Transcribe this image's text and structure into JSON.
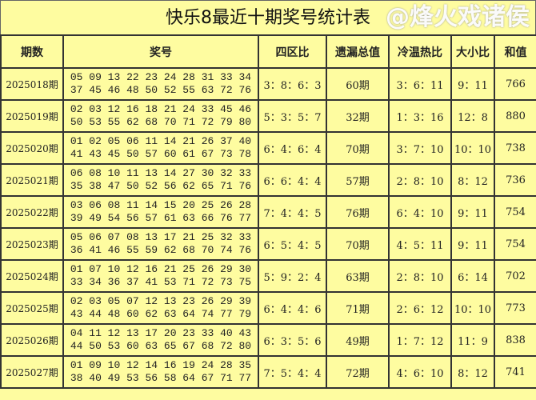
{
  "title": "快乐8最近十期奖号统计表",
  "headers": [
    "期数",
    "奖号",
    "四区比",
    "遗漏总值",
    "冷温热比",
    "大小比",
    "和值"
  ],
  "rows": [
    {
      "period": "2025018期",
      "line1": "05 09 13 22 23 24 28 31 33 34",
      "line2": "37 45 46 48 50 52 55 63 72 76",
      "zone": "3：8：6：3",
      "miss": "60期",
      "chw": "3：6：11",
      "bs": "9：11",
      "sum": "766"
    },
    {
      "period": "2025019期",
      "line1": "02 03 12 16 18 21 24 33 45 46",
      "line2": "50 53 55 62 68 70 71 72 79 80",
      "zone": "5：3：5：7",
      "miss": "32期",
      "chw": "1：3：16",
      "bs": "12：8",
      "sum": "880"
    },
    {
      "period": "2025020期",
      "line1": "01 02 05 06 11 14 21 26 37 40",
      "line2": "41 43 45 50 57 60 61 67 73 78",
      "zone": "6：4：6：4",
      "miss": "70期",
      "chw": "3：7：10",
      "bs": "10：10",
      "sum": "738"
    },
    {
      "period": "2025021期",
      "line1": "06 08 10 11 13 14 27 30 32 33",
      "line2": "35 38 47 50 52 56 62 65 71 76",
      "zone": "6：6：4：4",
      "miss": "57期",
      "chw": "2：8：10",
      "bs": "8：12",
      "sum": "736"
    },
    {
      "period": "2025022期",
      "line1": "03 06 08 11 14 15 20 25 26 28",
      "line2": "39 49 54 56 57 61 63 66 76 77",
      "zone": "7：4：4：5",
      "miss": "76期",
      "chw": "6：4：10",
      "bs": "9：11",
      "sum": "754"
    },
    {
      "period": "2025023期",
      "line1": "05 06 07 08 13 17 21 25 32 33",
      "line2": "36 41 46 55 59 62 68 70 74 76",
      "zone": "6：5：4：5",
      "miss": "70期",
      "chw": "4：5：11",
      "bs": "9：11",
      "sum": "754"
    },
    {
      "period": "2025024期",
      "line1": "01 07 10 12 16 21 25 26 29 30",
      "line2": "33 34 36 37 41 53 71 72 73 75",
      "zone": "5：9：2：4",
      "miss": "63期",
      "chw": "2：8：10",
      "bs": "6：14",
      "sum": "702"
    },
    {
      "period": "2025025期",
      "line1": "02 03 05 07 12 13 23 26 29 39",
      "line2": "43 44 48 60 62 63 64 74 77 79",
      "zone": "6：4：4：6",
      "miss": "71期",
      "chw": "2：6：12",
      "bs": "10：10",
      "sum": "773"
    },
    {
      "period": "2025026期",
      "line1": "04 11 12 13 17 20 23 33 40 43",
      "line2": "44 50 53 60 63 65 67 68 72 80",
      "zone": "6：3：5：6",
      "miss": "49期",
      "chw": "1：7：12",
      "bs": "11：9",
      "sum": "838"
    },
    {
      "period": "2025027期",
      "line1": "01 09 10 12 14 16 19 24 28 35",
      "line2": "38 40 49 53 56 58 64 67 71 77",
      "zone": "7：5：4：4",
      "miss": "72期",
      "chw": "4：6：10",
      "bs": "8：12",
      "sum": "741"
    }
  ],
  "watermark": "@烽火戏诸侯"
}
